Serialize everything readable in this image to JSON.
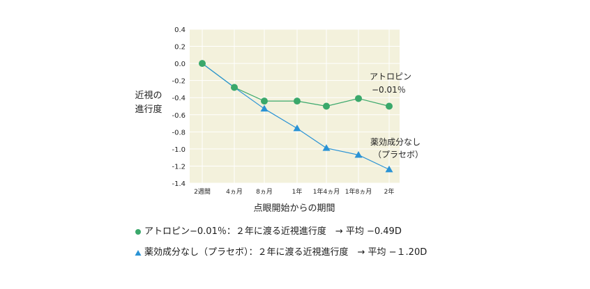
{
  "chart_data": {
    "type": "line",
    "title": "",
    "ylabel": [
      "近視の",
      "進行度"
    ],
    "xlabel": "点眼開始からの期間",
    "categories": [
      "2週間",
      "4ヵ月",
      "8ヵ月",
      "1年",
      "1年4ヵ月",
      "1年8ヵ月",
      "2年"
    ],
    "yticks": [
      "0.4",
      "0.2",
      "0.0",
      "-0.2",
      "-0.4",
      "-0.6",
      "-0.8",
      "-1.0",
      "-1.2",
      "-1.4"
    ],
    "ylim": [
      -1.4,
      0.4
    ],
    "series": [
      {
        "name": "アトロピン−0.01％",
        "marker": "circle",
        "color": "#3aa86b",
        "values": [
          0.0,
          -0.28,
          -0.44,
          -0.44,
          -0.5,
          -0.41,
          -0.5
        ]
      },
      {
        "name": "薬効成分なし（プラセボ）",
        "marker": "triangle",
        "color": "#2a93d5",
        "values": [
          0.0,
          -0.28,
          -0.53,
          -0.76,
          -0.99,
          -1.07,
          -1.24
        ]
      }
    ],
    "annotations": [
      {
        "lines": [
          "アトロピン",
          "−0.01％"
        ]
      },
      {
        "lines": [
          "薬効成分なし",
          "（プラセボ）"
        ]
      }
    ]
  },
  "legend": [
    "アトロピン−0.01％：２年に渡る近視進行度　→ 平均 −0.49D",
    "薬効成分なし（プラセボ）：２年に渡る近視進行度　→ 平均 −１.20D"
  ],
  "colors": {
    "plot_bg": "#f3f1dc",
    "grid": "#ffffff"
  }
}
